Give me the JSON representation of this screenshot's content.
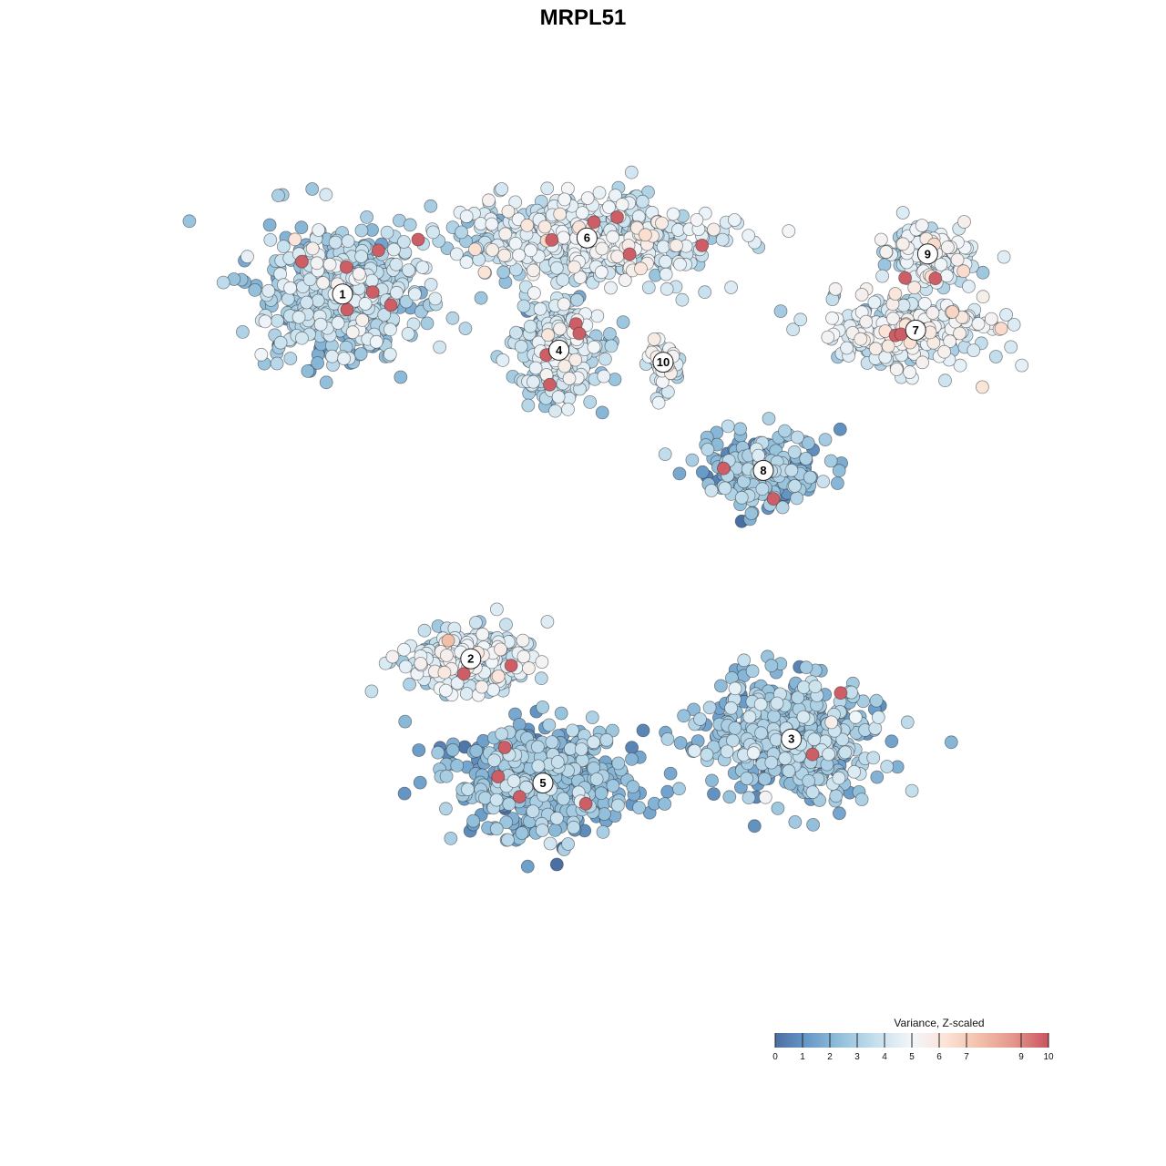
{
  "chart_data": {
    "type": "scatter",
    "title": "MRPL51",
    "xlabel": "",
    "ylabel": "",
    "grid": false,
    "legend": {
      "title": "Variance, Z-scaled",
      "placement": "bottom-right",
      "range": [
        0,
        10
      ],
      "ticks": [
        "0",
        "1",
        "2",
        "3",
        "4",
        "5",
        "6",
        "7",
        "9",
        "10"
      ],
      "colormap": [
        "#4a6fa3",
        "#6a9cc9",
        "#97c3dd",
        "#c8e1ee",
        "#f2f6fa",
        "#fbe3d6",
        "#f2bfa9",
        "#e3958a",
        "#c9545f"
      ]
    },
    "clusters": [
      {
        "label": "1",
        "x": -6.0,
        "y": 6.3,
        "mean": 3.0
      },
      {
        "label": "2",
        "x": -2.8,
        "y": -2.8,
        "mean": 4.0
      },
      {
        "label": "3",
        "x": 5.2,
        "y": -4.8,
        "mean": 2.6
      },
      {
        "label": "4",
        "x": -0.6,
        "y": 4.9,
        "mean": 3.5
      },
      {
        "label": "5",
        "x": -1.0,
        "y": -5.9,
        "mean": 2.1
      },
      {
        "label": "6",
        "x": 0.1,
        "y": 7.7,
        "mean": 3.9
      },
      {
        "label": "7",
        "x": 8.3,
        "y": 5.4,
        "mean": 4.2
      },
      {
        "label": "8",
        "x": 4.5,
        "y": 1.9,
        "mean": 2.2
      },
      {
        "label": "9",
        "x": 8.6,
        "y": 7.3,
        "mean": 4.0
      },
      {
        "label": "10",
        "x": 2.0,
        "y": 4.6,
        "mean": 4.3
      }
    ]
  }
}
